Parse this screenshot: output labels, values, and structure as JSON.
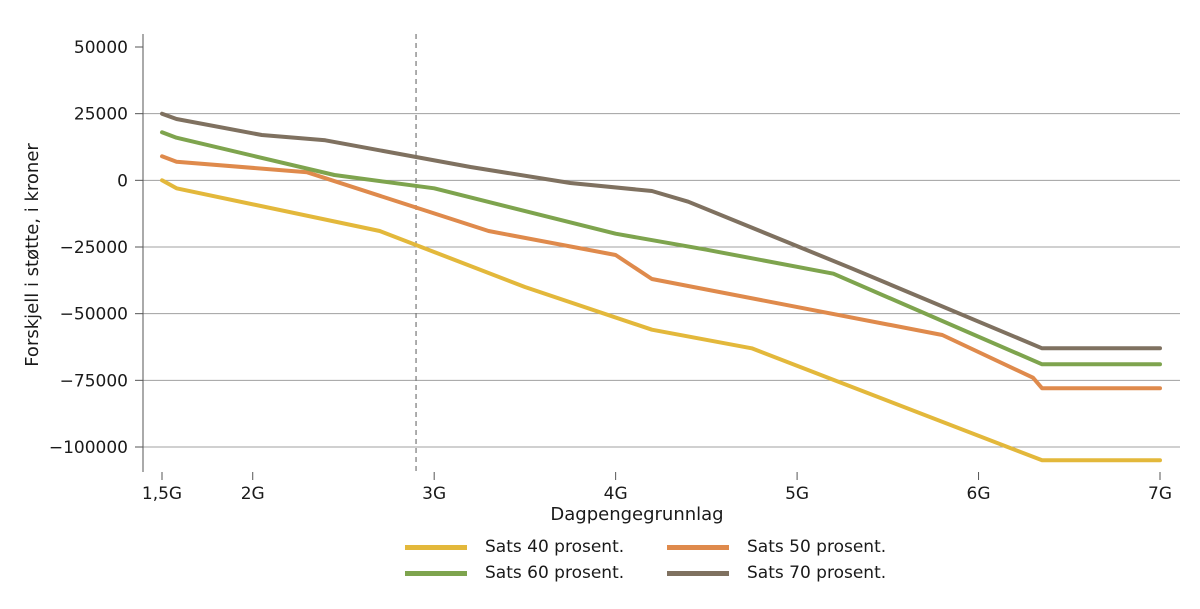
{
  "chart_data": {
    "type": "line",
    "title": "",
    "xlabel": "Dagpengegrunnlag",
    "ylabel": "Forskjell i støtte, i kroner",
    "xlim": [
      1.5,
      7
    ],
    "ylim": [
      -110000,
      55000
    ],
    "x_ticks": [
      {
        "value": 1.5,
        "label": "1,5G"
      },
      {
        "value": 2,
        "label": "2G"
      },
      {
        "value": 3,
        "label": "3G"
      },
      {
        "value": 4,
        "label": "4G"
      },
      {
        "value": 5,
        "label": "5G"
      },
      {
        "value": 6,
        "label": "6G"
      },
      {
        "value": 7,
        "label": "7G"
      }
    ],
    "y_ticks": [
      {
        "value": 50000,
        "label": "50000"
      },
      {
        "value": 25000,
        "label": "25000"
      },
      {
        "value": 0,
        "label": "0"
      },
      {
        "value": -25000,
        "label": "−25000"
      },
      {
        "value": -50000,
        "label": "−50000"
      },
      {
        "value": -75000,
        "label": "−75000"
      },
      {
        "value": -100000,
        "label": "−100000"
      }
    ],
    "gridlines_y": [
      25000,
      0,
      -25000,
      -50000,
      -75000,
      -100000
    ],
    "reference_line_x": 2.9,
    "series": [
      {
        "name": "Sats 40 prosent.",
        "color": "#e3b83b",
        "x": [
          1.5,
          1.58,
          2.7,
          3.5,
          4.2,
          4.75,
          6.35,
          7.0
        ],
        "y": [
          0,
          -3000,
          -19000,
          -40000,
          -56000,
          -63000,
          -105000,
          -105000
        ]
      },
      {
        "name": "Sats 50 prosent.",
        "color": "#df8a4c",
        "x": [
          1.5,
          1.58,
          2.3,
          3.3,
          4.0,
          4.2,
          5.8,
          6.3,
          6.35,
          7.0
        ],
        "y": [
          9000,
          7000,
          3000,
          -19000,
          -28000,
          -37000,
          -58000,
          -74000,
          -78000,
          -78000
        ]
      },
      {
        "name": "Sats 60 prosent.",
        "color": "#7ea44e",
        "x": [
          1.5,
          1.58,
          2.45,
          3.0,
          4.0,
          4.5,
          5.2,
          6.35,
          7.0
        ],
        "y": [
          18000,
          16000,
          2000,
          -3000,
          -20000,
          -26000,
          -35000,
          -69000,
          -69000
        ]
      },
      {
        "name": "Sats 70 prosent.",
        "color": "#7f7160",
        "x": [
          1.5,
          1.58,
          2.05,
          2.4,
          3.2,
          3.75,
          4.2,
          4.4,
          5.3,
          6.35,
          7.0
        ],
        "y": [
          25000,
          23000,
          17000,
          15000,
          5000,
          -1000,
          -4000,
          -8000,
          -33000,
          -63000,
          -63000
        ]
      }
    ]
  }
}
